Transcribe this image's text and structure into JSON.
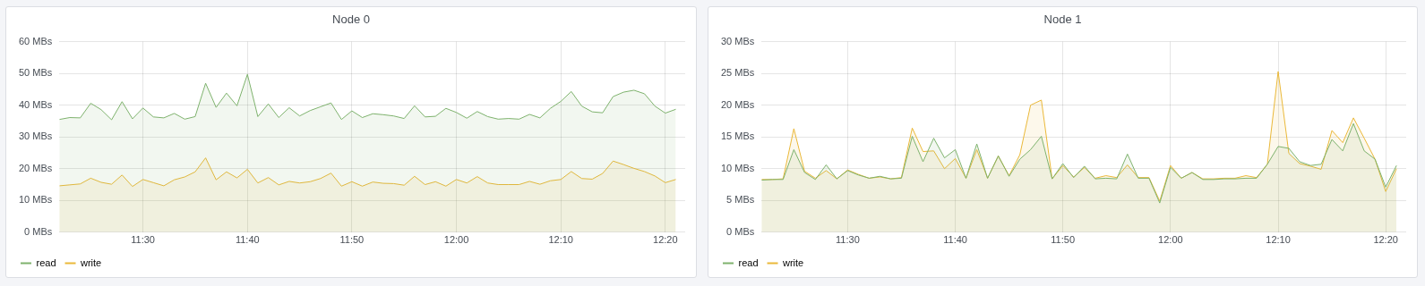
{
  "chart_data": [
    {
      "type": "area",
      "title": "Node 0",
      "x": [
        11.3667,
        11.3833,
        11.4,
        11.4167,
        11.4333,
        11.45,
        11.4667,
        11.4833,
        11.5,
        11.5167,
        11.5333,
        11.55,
        11.5667,
        11.5833,
        11.6,
        11.6167,
        11.6333,
        11.65,
        11.6667,
        11.6833,
        11.7,
        11.7167,
        11.7333,
        11.75,
        11.7667,
        11.7833,
        11.8,
        11.8167,
        11.8333,
        11.85,
        11.8667,
        11.8833,
        11.9,
        11.9167,
        11.9333,
        11.95,
        11.9667,
        11.9833,
        12,
        12.0167,
        12.0333,
        12.05,
        12.0667,
        12.0833,
        12.1,
        12.1167,
        12.1333,
        12.15,
        12.1667,
        12.1833,
        12.2,
        12.2167,
        12.2333,
        12.25,
        12.2667,
        12.2833,
        12.3,
        12.3167,
        12.3333,
        12.35
      ],
      "series": [
        {
          "name": "read",
          "color": "#7eb26d",
          "values": [
            35.5,
            36.1,
            36.0,
            40.6,
            38.6,
            35.4,
            41.1,
            35.7,
            39.1,
            36.3,
            36.0,
            37.4,
            35.6,
            36.4,
            46.9,
            39.3,
            43.8,
            39.8,
            49.7,
            36.4,
            40.4,
            36.1,
            39.2,
            36.6,
            38.3,
            39.5,
            40.7,
            35.5,
            38.2,
            36.1,
            37.3,
            37.0,
            36.6,
            35.8,
            39.8,
            36.3,
            36.5,
            39.0,
            37.7,
            35.9,
            38.0,
            36.4,
            35.6,
            35.8,
            35.6,
            37.1,
            36.0,
            39.0,
            41.2,
            44.3,
            39.7,
            37.9,
            37.6,
            42.7,
            44.1,
            44.7,
            43.6,
            39.7,
            37.5,
            38.7
          ]
        },
        {
          "name": "write",
          "color": "#eab839",
          "values": [
            14.6,
            14.9,
            15.2,
            17.0,
            15.7,
            15.1,
            18.0,
            14.4,
            16.6,
            15.6,
            14.6,
            16.5,
            17.4,
            19.0,
            23.4,
            16.5,
            19.0,
            17.1,
            19.8,
            15.5,
            17.2,
            14.9,
            16.0,
            15.5,
            15.9,
            16.9,
            18.6,
            14.5,
            15.9,
            14.5,
            15.8,
            15.4,
            15.3,
            14.8,
            17.6,
            15.0,
            15.9,
            14.5,
            16.6,
            15.5,
            17.5,
            15.5,
            15.0,
            15.0,
            15.0,
            16.0,
            15.1,
            16.2,
            16.6,
            19.1,
            16.9,
            16.7,
            18.5,
            22.4,
            21.3,
            20.1,
            19.1,
            17.7,
            15.6,
            16.6
          ]
        }
      ],
      "xlim": [
        11.3667,
        12.365
      ],
      "xticks": [
        {
          "value": 11.5,
          "label": "11:30"
        },
        {
          "value": 11.6667,
          "label": "11:40"
        },
        {
          "value": 11.8333,
          "label": "11:50"
        },
        {
          "value": 12,
          "label": "12:00"
        },
        {
          "value": 12.1667,
          "label": "12:10"
        },
        {
          "value": 12.3333,
          "label": "12:20"
        }
      ],
      "ylim": [
        0,
        60
      ],
      "yticks": [
        {
          "value": 0,
          "label": "0 MBs"
        },
        {
          "value": 10,
          "label": "10 MBs"
        },
        {
          "value": 20,
          "label": "20 MBs"
        },
        {
          "value": 30,
          "label": "30 MBs"
        },
        {
          "value": 40,
          "label": "40 MBs"
        },
        {
          "value": 50,
          "label": "50 MBs"
        },
        {
          "value": 60,
          "label": "60 MBs"
        }
      ],
      "grid": true,
      "legend": "bottom left",
      "marker": "none"
    },
    {
      "type": "area",
      "title": "Node 1",
      "x": [
        11.3667,
        11.3833,
        11.4,
        11.4167,
        11.4333,
        11.45,
        11.4667,
        11.4833,
        11.5,
        11.5167,
        11.5333,
        11.55,
        11.5667,
        11.5833,
        11.6,
        11.6167,
        11.6333,
        11.65,
        11.6667,
        11.6833,
        11.7,
        11.7167,
        11.7333,
        11.75,
        11.7667,
        11.7833,
        11.8,
        11.8167,
        11.8333,
        11.85,
        11.8667,
        11.8833,
        11.9,
        11.9167,
        11.9333,
        11.95,
        11.9667,
        11.9833,
        12,
        12.0167,
        12.0333,
        12.05,
        12.0667,
        12.0833,
        12.1,
        12.1167,
        12.1333,
        12.15,
        12.1667,
        12.1833,
        12.2,
        12.2167,
        12.2333,
        12.25,
        12.2667,
        12.2833,
        12.3,
        12.3167,
        12.3333,
        12.35
      ],
      "series": [
        {
          "name": "read",
          "color": "#7eb26d",
          "values": [
            8.2,
            8.3,
            8.3,
            13.0,
            9.4,
            8.3,
            10.6,
            8.4,
            9.7,
            9.0,
            8.5,
            8.8,
            8.4,
            8.5,
            15.1,
            11.1,
            14.8,
            11.7,
            13.0,
            8.5,
            13.9,
            8.5,
            12.0,
            8.8,
            11.5,
            13.0,
            15.1,
            8.4,
            10.8,
            8.6,
            10.4,
            8.4,
            8.5,
            8.4,
            12.3,
            8.5,
            8.5,
            4.6,
            10.2,
            8.5,
            9.4,
            8.3,
            8.3,
            8.4,
            8.4,
            8.5,
            8.5,
            10.7,
            13.5,
            13.2,
            11.1,
            10.5,
            10.7,
            14.6,
            12.8,
            17.1,
            12.8,
            11.5,
            7.1,
            10.5
          ]
        },
        {
          "name": "write",
          "color": "#eab839",
          "values": [
            8.3,
            8.3,
            8.4,
            16.3,
            9.6,
            8.5,
            9.7,
            8.4,
            9.8,
            9.1,
            8.5,
            8.7,
            8.4,
            8.6,
            16.4,
            12.7,
            12.8,
            10.0,
            11.6,
            8.5,
            13.0,
            8.5,
            12.0,
            8.9,
            12.2,
            20.0,
            20.8,
            8.4,
            10.5,
            8.7,
            10.2,
            8.5,
            8.9,
            8.6,
            10.6,
            8.6,
            8.6,
            4.9,
            10.5,
            8.5,
            9.4,
            8.4,
            8.4,
            8.5,
            8.5,
            8.9,
            8.6,
            10.7,
            25.3,
            12.4,
            10.8,
            10.4,
            9.9,
            16.0,
            14.1,
            18.0,
            14.8,
            11.5,
            6.4,
            10.0
          ]
        }
      ],
      "xlim": [
        11.3667,
        12.365
      ],
      "xticks": [
        {
          "value": 11.5,
          "label": "11:30"
        },
        {
          "value": 11.6667,
          "label": "11:40"
        },
        {
          "value": 11.8333,
          "label": "11:50"
        },
        {
          "value": 12,
          "label": "12:00"
        },
        {
          "value": 12.1667,
          "label": "12:10"
        },
        {
          "value": 12.3333,
          "label": "12:20"
        }
      ],
      "ylim": [
        0,
        30
      ],
      "yticks": [
        {
          "value": 0,
          "label": "0 MBs"
        },
        {
          "value": 5,
          "label": "5 MBs"
        },
        {
          "value": 10,
          "label": "10 MBs"
        },
        {
          "value": 15,
          "label": "15 MBs"
        },
        {
          "value": 20,
          "label": "20 MBs"
        },
        {
          "value": 25,
          "label": "25 MBs"
        },
        {
          "value": 30,
          "label": "30 MBs"
        }
      ],
      "grid": true,
      "legend": "bottom left",
      "marker": "none"
    }
  ]
}
